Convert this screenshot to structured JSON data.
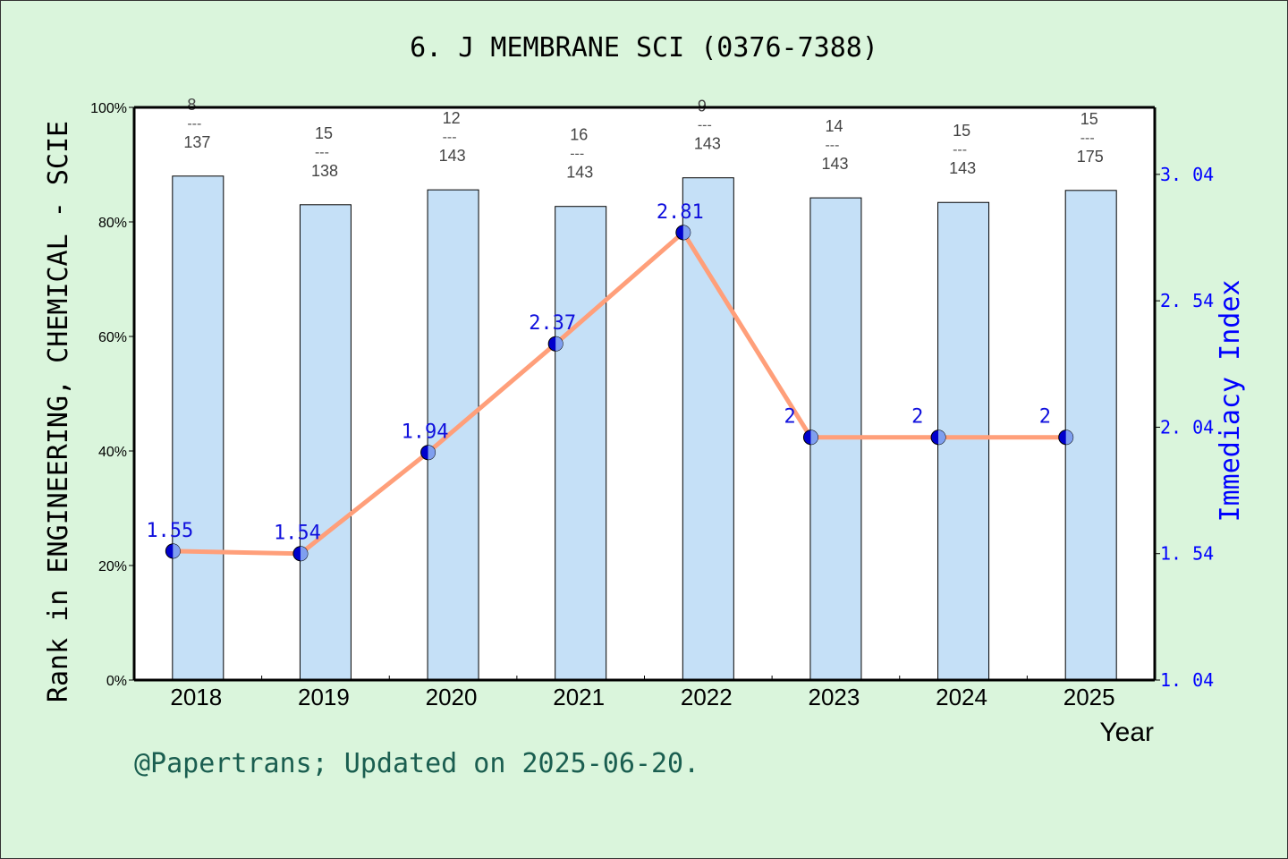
{
  "chart_data": {
    "type": "bar+line",
    "title": "6. J MEMBRANE SCI (0376-7388)",
    "xlabel": "Year",
    "ylabel": "Rank in ENGINEERING, CHEMICAL - SCIE",
    "y2label": "Immediacy Index",
    "categories": [
      "2018",
      "2019",
      "2020",
      "2021",
      "2022",
      "2023",
      "2024",
      "2025"
    ],
    "ylim": [
      0,
      100
    ],
    "yticks": [
      "0%",
      "20%",
      "40%",
      "60%",
      "80%",
      "100%"
    ],
    "y2lim": [
      1.04,
      3.305
    ],
    "y2ticks": [
      "1.04",
      "1.54",
      "2.04",
      "2.54",
      "3.04"
    ],
    "bar_values": [
      88.0,
      83.0,
      85.6,
      82.7,
      87.7,
      84.2,
      83.4,
      85.5
    ],
    "rank_labels": [
      {
        "rank": "8",
        "total": "137"
      },
      {
        "rank": "15",
        "total": "138"
      },
      {
        "rank": "12",
        "total": "143"
      },
      {
        "rank": "16",
        "total": "143"
      },
      {
        "rank": "9",
        "total": "143"
      },
      {
        "rank": "14",
        "total": "143"
      },
      {
        "rank": "15",
        "total": "143"
      },
      {
        "rank": "15",
        "total": "175"
      }
    ],
    "line_values": [
      1.55,
      1.54,
      1.94,
      2.37,
      2.81,
      2,
      2,
      2
    ],
    "line_labels": [
      "1.55",
      "1.54",
      "1.94",
      "2.37",
      "2.81",
      "2",
      "2",
      "2"
    ],
    "colors": {
      "bar": "#c5e0f7",
      "line": "#ff9f7a",
      "point": "#0000cc",
      "right_axis": "#0000ff"
    },
    "grid": false
  },
  "footer": "@Papertrans; Updated on 2025-06-20."
}
